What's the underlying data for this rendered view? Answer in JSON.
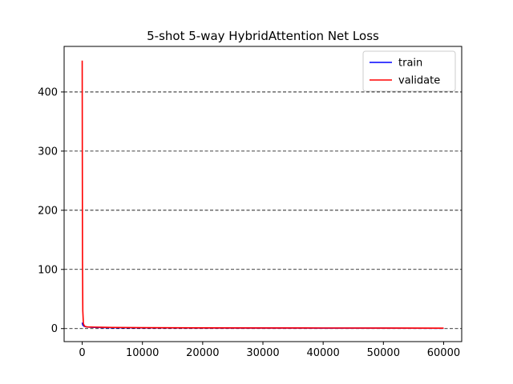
{
  "chart_data": {
    "type": "line",
    "title": "5-shot 5-way HybridAttention Net Loss",
    "xlabel": "",
    "ylabel": "",
    "xlim": [
      -3000,
      63000
    ],
    "ylim": [
      -22,
      477
    ],
    "x_ticks": [
      0,
      10000,
      20000,
      30000,
      40000,
      50000,
      60000
    ],
    "x_tick_labels": [
      "0",
      "10000",
      "20000",
      "30000",
      "40000",
      "50000",
      "60000"
    ],
    "y_ticks": [
      0,
      100,
      200,
      300,
      400
    ],
    "y_tick_labels": [
      "0",
      "100",
      "200",
      "300",
      "400"
    ],
    "grid": "horizontal dashed",
    "legend_position": "top-right",
    "series": [
      {
        "name": "train",
        "color": "#0000ff",
        "x": [
          0,
          100,
          300,
          600,
          1000,
          2000,
          5000,
          10000,
          20000,
          30000,
          40000,
          50000,
          60000
        ],
        "y": [
          10,
          6,
          4,
          3,
          2.5,
          2,
          1.5,
          1.2,
          1.0,
          0.9,
          0.8,
          0.7,
          0.6
        ]
      },
      {
        "name": "validate",
        "color": "#ff0000",
        "x": [
          0,
          20,
          50,
          100,
          200,
          400,
          700,
          1000,
          2000,
          5000,
          10000,
          20000,
          30000,
          40000,
          50000,
          60000
        ],
        "y": [
          453,
          300,
          120,
          30,
          8,
          4,
          3,
          2.8,
          2.5,
          2.0,
          1.6,
          1.3,
          1.1,
          1.0,
          0.9,
          0.8
        ]
      }
    ]
  }
}
